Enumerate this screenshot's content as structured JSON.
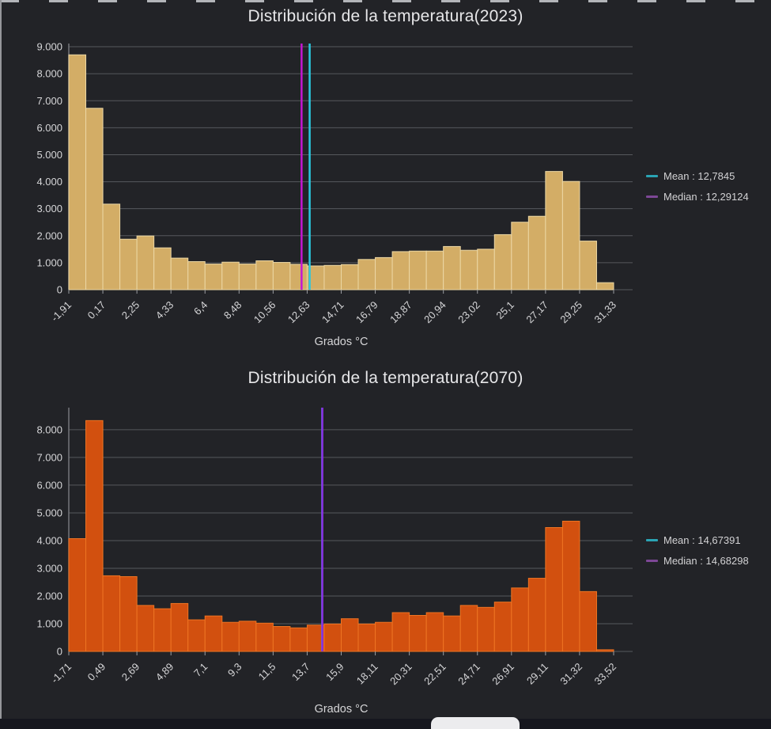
{
  "page": {
    "background": "#222327",
    "bottom_bar_color": "#16171e",
    "grid_color": "#56585d"
  },
  "chart_data": [
    {
      "type": "bar",
      "subtype": "histogram",
      "title": "Distribución de la temperatura(2023)",
      "xlabel": "Grados °C",
      "x_tick_labels": [
        "-1,91",
        "0,17",
        "2,25",
        "4,33",
        "6,4",
        "8,48",
        "10,56",
        "12,63",
        "14,71",
        "16,79",
        "18,87",
        "20,94",
        "23,02",
        "25,1",
        "27,17",
        "29,25",
        "31,33"
      ],
      "x_range": [
        -1.91,
        31.33
      ],
      "bin_width": 1.03875,
      "values": [
        8700,
        6720,
        3170,
        1870,
        1990,
        1550,
        1170,
        1040,
        950,
        1020,
        950,
        1070,
        1010,
        940,
        880,
        900,
        930,
        1120,
        1190,
        1410,
        1430,
        1430,
        1600,
        1460,
        1500,
        2040,
        2500,
        2720,
        4380,
        4010,
        1800,
        260
      ],
      "y_tick_values": [
        0,
        1000,
        2000,
        3000,
        4000,
        5000,
        6000,
        7000,
        8000,
        9000
      ],
      "y_tick_labels": [
        "0",
        "1.000",
        "2.000",
        "3.000",
        "4.000",
        "5.000",
        "6.000",
        "7.000",
        "8.000",
        "9.000"
      ],
      "ylim": [
        0,
        9060
      ],
      "grid": true,
      "legend_position": "right",
      "bar_fill": "#d3ad66",
      "bar_stroke": "#ecd7a4",
      "mean": {
        "value": 12.7845,
        "color": "#29c9e0",
        "swatch_color": "#2aa4b4",
        "legend_label": "Mean : 12,7845"
      },
      "median": {
        "value": 12.29124,
        "color": "#c616d2",
        "swatch_color": "#7d4796",
        "legend_label": "Median : 12,29124"
      }
    },
    {
      "type": "bar",
      "subtype": "histogram",
      "title": "Distribución de la temperatura(2070)",
      "xlabel": "Grados °C",
      "x_tick_labels": [
        "-1,71",
        "0,49",
        "2,69",
        "4,89",
        "7,1",
        "9,3",
        "11,5",
        "13,7",
        "15,9",
        "18,11",
        "20,31",
        "22,51",
        "24,71",
        "26,91",
        "29,11",
        "31,32",
        "33,52"
      ],
      "x_range": [
        -1.71,
        33.52
      ],
      "bin_width": 1.1009,
      "values": [
        4070,
        8330,
        2730,
        2700,
        1660,
        1540,
        1730,
        1140,
        1280,
        1050,
        1090,
        1020,
        900,
        850,
        950,
        990,
        1180,
        990,
        1050,
        1400,
        1300,
        1400,
        1280,
        1660,
        1590,
        1780,
        2290,
        2640,
        4470,
        4700,
        2160,
        60
      ],
      "y_tick_values": [
        0,
        1000,
        2000,
        3000,
        4000,
        5000,
        6000,
        7000,
        8000
      ],
      "y_tick_labels": [
        "0",
        "1.000",
        "2.000",
        "3.000",
        "4.000",
        "5.000",
        "6.000",
        "7.000",
        "8.000"
      ],
      "ylim": [
        0,
        8740
      ],
      "grid": true,
      "legend_position": "right",
      "bar_fill": "#d2500f",
      "bar_stroke": "#ee7423",
      "mean": {
        "value": 14.67391,
        "color": "#29c9e0",
        "swatch_color": "#2aa4b4",
        "legend_label": "Mean : 14,67391"
      },
      "median": {
        "value": 14.68298,
        "color": "#8b2be2",
        "swatch_color": "#7d4796",
        "legend_label": "Median : 14,68298"
      }
    }
  ]
}
